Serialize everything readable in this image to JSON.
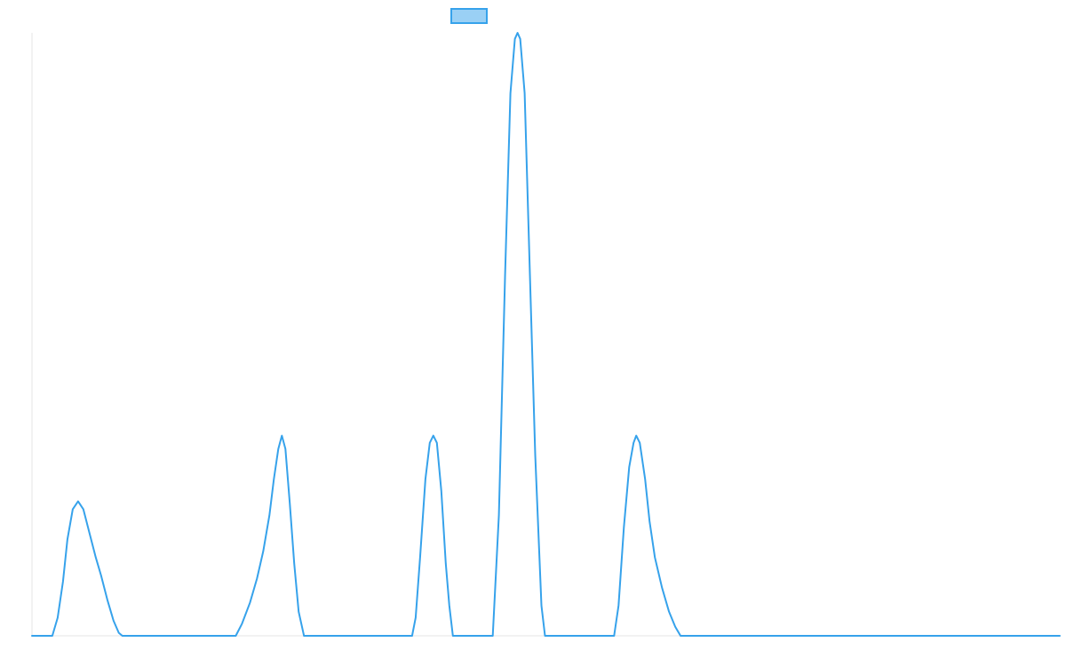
{
  "chart_data": {
    "type": "line",
    "title": "",
    "xlabel": "",
    "ylabel": "",
    "grid": false,
    "legend": {
      "placement": "top-center",
      "entries": [
        {
          "name": "",
          "color": "#36a2eb",
          "fill": "#9ad0f5"
        }
      ]
    },
    "xlim": [
      0,
      116
    ],
    "ylim": [
      0,
      100
    ],
    "series": [
      {
        "name": "",
        "color": "#36a2eb",
        "points": [
          [
            0,
            0
          ],
          [
            2.3,
            0
          ],
          [
            2.9,
            3
          ],
          [
            3.5,
            9
          ],
          [
            4.0,
            16
          ],
          [
            4.6,
            21
          ],
          [
            5.2,
            22.3
          ],
          [
            5.8,
            21
          ],
          [
            6.5,
            17
          ],
          [
            7.2,
            13
          ],
          [
            7.8,
            10
          ],
          [
            8.5,
            6
          ],
          [
            9.2,
            2.5
          ],
          [
            9.8,
            0.5
          ],
          [
            10.2,
            0
          ],
          [
            23.0,
            0
          ],
          [
            23.7,
            2
          ],
          [
            24.6,
            5.5
          ],
          [
            25.4,
            9.5
          ],
          [
            26.1,
            14
          ],
          [
            26.8,
            20
          ],
          [
            27.3,
            26
          ],
          [
            27.8,
            31
          ],
          [
            28.2,
            33.2
          ],
          [
            28.6,
            31
          ],
          [
            29.1,
            22
          ],
          [
            29.6,
            12
          ],
          [
            30.1,
            4
          ],
          [
            30.7,
            0
          ],
          [
            42.9,
            0
          ],
          [
            43.3,
            3
          ],
          [
            43.8,
            13
          ],
          [
            44.4,
            26
          ],
          [
            44.9,
            32
          ],
          [
            45.3,
            33.2
          ],
          [
            45.7,
            32
          ],
          [
            46.2,
            24
          ],
          [
            46.7,
            12
          ],
          [
            47.1,
            5
          ],
          [
            47.5,
            0
          ],
          [
            52.0,
            0
          ],
          [
            52.7,
            20
          ],
          [
            53.4,
            60
          ],
          [
            54.0,
            90
          ],
          [
            54.5,
            99
          ],
          [
            54.8,
            100
          ],
          [
            55.1,
            99
          ],
          [
            55.6,
            90
          ],
          [
            56.2,
            60
          ],
          [
            56.8,
            30
          ],
          [
            57.5,
            5
          ],
          [
            57.9,
            0
          ],
          [
            65.7,
            0
          ],
          [
            66.2,
            5
          ],
          [
            66.8,
            18
          ],
          [
            67.4,
            28
          ],
          [
            67.9,
            32
          ],
          [
            68.2,
            33.2
          ],
          [
            68.6,
            32
          ],
          [
            69.2,
            26
          ],
          [
            69.7,
            19
          ],
          [
            70.3,
            13
          ],
          [
            71.1,
            8
          ],
          [
            71.9,
            4
          ],
          [
            72.6,
            1.5
          ],
          [
            73.2,
            0
          ],
          [
            116,
            0
          ]
        ]
      }
    ]
  }
}
